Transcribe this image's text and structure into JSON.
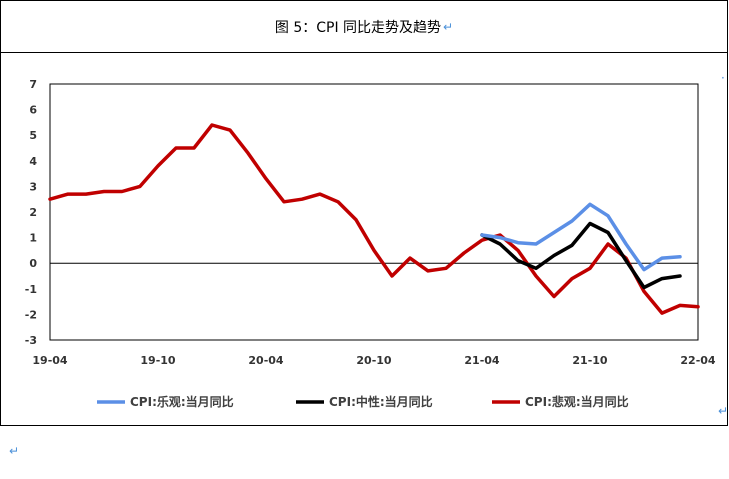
{
  "figure": {
    "title": "图 5：CPI 同比走势及趋势",
    "return_glyph": "↵"
  },
  "chart_data": {
    "type": "line",
    "x_labels": [
      "19-04",
      "19-10",
      "20-04",
      "20-10",
      "21-04",
      "21-10",
      "22-04"
    ],
    "ylim": [
      -3,
      7
    ],
    "yticks": [
      -3,
      -2,
      -1,
      0,
      1,
      2,
      3,
      4,
      5,
      6,
      7
    ],
    "grid": false,
    "legend_position": "bottom",
    "series": [
      {
        "name": "CPI:乐观:当月同比",
        "color": "#5b8fe6",
        "points": [
          [
            24,
            1.1
          ],
          [
            25,
            1.0
          ],
          [
            26,
            0.8
          ],
          [
            27,
            0.75
          ],
          [
            28,
            1.2
          ],
          [
            29,
            1.65
          ],
          [
            30,
            2.3
          ],
          [
            31,
            1.85
          ],
          [
            32,
            0.75
          ],
          [
            33,
            -0.25
          ],
          [
            34,
            0.2
          ],
          [
            35,
            0.25
          ]
        ]
      },
      {
        "name": "CPI:中性:当月同比",
        "color": "#000000",
        "points": [
          [
            24,
            1.1
          ],
          [
            25,
            0.75
          ],
          [
            26,
            0.1
          ],
          [
            27,
            -0.2
          ],
          [
            28,
            0.3
          ],
          [
            29,
            0.7
          ],
          [
            30,
            1.55
          ],
          [
            31,
            1.2
          ],
          [
            32,
            0.1
          ],
          [
            33,
            -0.95
          ],
          [
            34,
            -0.6
          ],
          [
            35,
            -0.5
          ]
        ]
      },
      {
        "name": "CPI:悲观:当月同比",
        "color": "#c00000",
        "points": [
          [
            0,
            2.5
          ],
          [
            1,
            2.7
          ],
          [
            2,
            2.7
          ],
          [
            3,
            2.8
          ],
          [
            4,
            2.8
          ],
          [
            5,
            3.0
          ],
          [
            6,
            3.8
          ],
          [
            7,
            4.5
          ],
          [
            8,
            4.5
          ],
          [
            9,
            5.4
          ],
          [
            10,
            5.2
          ],
          [
            11,
            4.3
          ],
          [
            12,
            3.3
          ],
          [
            13,
            2.4
          ],
          [
            14,
            2.5
          ],
          [
            15,
            2.7
          ],
          [
            16,
            2.4
          ],
          [
            17,
            1.7
          ],
          [
            18,
            0.5
          ],
          [
            19,
            -0.5
          ],
          [
            20,
            0.2
          ],
          [
            21,
            -0.3
          ],
          [
            22,
            -0.2
          ],
          [
            23,
            0.4
          ],
          [
            24,
            0.9
          ],
          [
            25,
            1.1
          ],
          [
            26,
            0.5
          ],
          [
            27,
            -0.5
          ],
          [
            28,
            -1.3
          ],
          [
            29,
            -0.6
          ],
          [
            30,
            -0.2
          ],
          [
            31,
            0.75
          ],
          [
            32,
            0.2
          ],
          [
            33,
            -1.1
          ],
          [
            34,
            -1.95
          ],
          [
            35,
            -1.65
          ],
          [
            36,
            -1.7
          ]
        ]
      }
    ]
  }
}
